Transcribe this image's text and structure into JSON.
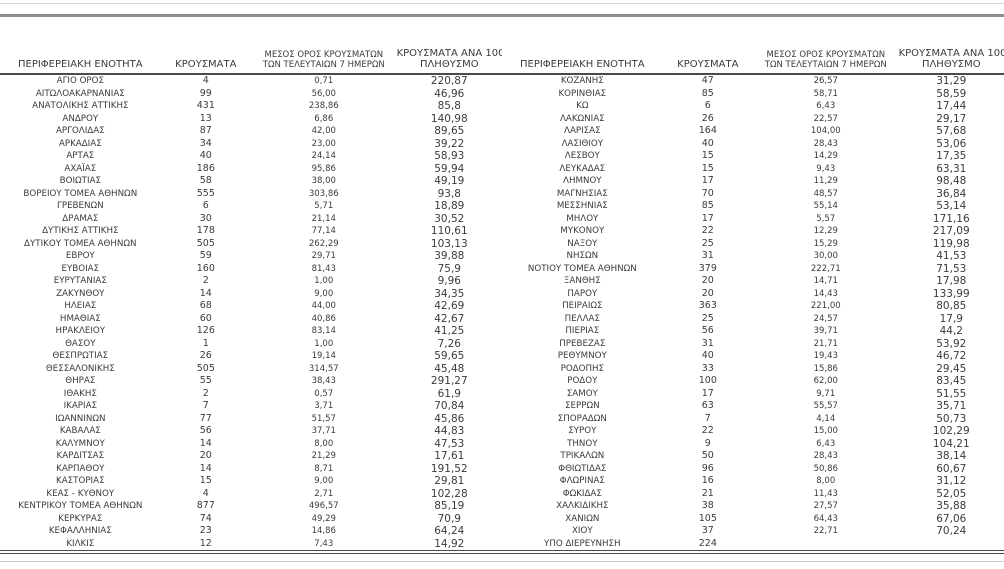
{
  "colors": {
    "text": "#3b3b3b",
    "rule_light": "#d9d9d9",
    "rule_medium": "#8c8c8c",
    "rule_dark": "#4a4a4a"
  },
  "headers": {
    "region": "ΠΕΡΙΦΕΡΕΙΑΚΗ ΕΝΟΤΗΤΑ",
    "cases": "ΚΡΟΥΣΜΑΤΑ",
    "avg7_line1": "ΜΕΣΟΣ ΟΡΟΣ ΚΡΟΥΣΜΑΤΩΝ",
    "avg7_line2": "ΤΩΝ ΤΕΛΕΥΤΑΙΩΝ 7 ΗΜΕΡΩΝ",
    "per100k_line1": "ΚΡΟΥΣΜΑΤΑ ΑΝΑ 100000",
    "per100k_line2": "ΠΛΗΘΥΣΜΟ"
  },
  "left_rows": [
    [
      "ΑΓΙΟ ΟΡΟΣ",
      "4",
      "0,71",
      "220,87"
    ],
    [
      "ΑΙΤΩΛΟΑΚΑΡΝΑΝΙΑΣ",
      "99",
      "56,00",
      "46,96"
    ],
    [
      "ΑΝΑΤΟΛΙΚΗΣ ΑΤΤΙΚΗΣ",
      "431",
      "238,86",
      "85,8"
    ],
    [
      "ΑΝΔΡΟΥ",
      "13",
      "6,86",
      "140,98"
    ],
    [
      "ΑΡΓΟΛΙΔΑΣ",
      "87",
      "42,00",
      "89,65"
    ],
    [
      "ΑΡΚΑΔΙΑΣ",
      "34",
      "23,00",
      "39,22"
    ],
    [
      "ΑΡΤΑΣ",
      "40",
      "24,14",
      "58,93"
    ],
    [
      "ΑΧΑΪΑΣ",
      "186",
      "95,86",
      "59,94"
    ],
    [
      "ΒΟΙΩΤΙΑΣ",
      "58",
      "38,00",
      "49,19"
    ],
    [
      "ΒΟΡΕΙΟΥ ΤΟΜΕΑ ΑΘΗΝΩΝ",
      "555",
      "303,86",
      "93,8"
    ],
    [
      "ΓΡΕΒΕΝΩΝ",
      "6",
      "5,71",
      "18,89"
    ],
    [
      "ΔΡΑΜΑΣ",
      "30",
      "21,14",
      "30,52"
    ],
    [
      "ΔΥΤΙΚΗΣ ΑΤΤΙΚΗΣ",
      "178",
      "77,14",
      "110,61"
    ],
    [
      "ΔΥΤΙΚΟΥ ΤΟΜΕΑ ΑΘΗΝΩΝ",
      "505",
      "262,29",
      "103,13"
    ],
    [
      "ΕΒΡΟΥ",
      "59",
      "29,71",
      "39,88"
    ],
    [
      "ΕΥΒΟΙΑΣ",
      "160",
      "81,43",
      "75,9"
    ],
    [
      "ΕΥΡΥΤΑΝΙΑΣ",
      "2",
      "1,00",
      "9,96"
    ],
    [
      "ΖΑΚΥΝΘΟΥ",
      "14",
      "9,00",
      "34,35"
    ],
    [
      "ΗΛΕΙΑΣ",
      "68",
      "44,00",
      "42,69"
    ],
    [
      "ΗΜΑΘΙΑΣ",
      "60",
      "40,86",
      "42,67"
    ],
    [
      "ΗΡΑΚΛΕΙΟΥ",
      "126",
      "83,14",
      "41,25"
    ],
    [
      "ΘΑΣΟΥ",
      "1",
      "1,00",
      "7,26"
    ],
    [
      "ΘΕΣΠΡΩΤΙΑΣ",
      "26",
      "19,14",
      "59,65"
    ],
    [
      "ΘΕΣΣΑΛΟΝΙΚΗΣ",
      "505",
      "314,57",
      "45,48"
    ],
    [
      "ΘΗΡΑΣ",
      "55",
      "38,43",
      "291,27"
    ],
    [
      "ΙΘΑΚΗΣ",
      "2",
      "0,57",
      "61,9"
    ],
    [
      "ΙΚΑΡΙΑΣ",
      "7",
      "3,71",
      "70,84"
    ],
    [
      "ΙΩΑΝΝΙΝΩΝ",
      "77",
      "51,57",
      "45,86"
    ],
    [
      "ΚΑΒΑΛΑΣ",
      "56",
      "37,71",
      "44,83"
    ],
    [
      "ΚΑΛΥΜΝΟΥ",
      "14",
      "8,00",
      "47,53"
    ],
    [
      "ΚΑΡΔΙΤΣΑΣ",
      "20",
      "21,29",
      "17,61"
    ],
    [
      "ΚΑΡΠΑΘΟΥ",
      "14",
      "8,71",
      "191,52"
    ],
    [
      "ΚΑΣΤΟΡΙΑΣ",
      "15",
      "9,00",
      "29,81"
    ],
    [
      "ΚΕΑΣ - ΚΥΘΝΟΥ",
      "4",
      "2,71",
      "102,28"
    ],
    [
      "ΚΕΝΤΡΙΚΟΥ ΤΟΜΕΑ ΑΘΗΝΩΝ",
      "877",
      "496,57",
      "85,19"
    ],
    [
      "ΚΕΡΚΥΡΑΣ",
      "74",
      "49,29",
      "70,9"
    ],
    [
      "ΚΕΦΑΛΛΗΝΙΑΣ",
      "23",
      "14,86",
      "64,24"
    ],
    [
      "ΚΙΛΚΙΣ",
      "12",
      "7,43",
      "14,92"
    ]
  ],
  "right_rows": [
    [
      "ΚΟΖΑΝΗΣ",
      "47",
      "26,57",
      "31,29"
    ],
    [
      "ΚΟΡΙΝΘΙΑΣ",
      "85",
      "58,71",
      "58,59"
    ],
    [
      "ΚΩ",
      "6",
      "6,43",
      "17,44"
    ],
    [
      "ΛΑΚΩΝΙΑΣ",
      "26",
      "22,57",
      "29,17"
    ],
    [
      "ΛΑΡΙΣΑΣ",
      "164",
      "104,00",
      "57,68"
    ],
    [
      "ΛΑΣΙΘΙΟΥ",
      "40",
      "28,43",
      "53,06"
    ],
    [
      "ΛΕΣΒΟΥ",
      "15",
      "14,29",
      "17,35"
    ],
    [
      "ΛΕΥΚΑΔΑΣ",
      "15",
      "9,43",
      "63,31"
    ],
    [
      "ΛΗΜΝΟΥ",
      "17",
      "11,29",
      "98,48"
    ],
    [
      "ΜΑΓΝΗΣΙΑΣ",
      "70",
      "48,57",
      "36,84"
    ],
    [
      "ΜΕΣΣΗΝΙΑΣ",
      "85",
      "55,14",
      "53,14"
    ],
    [
      "ΜΗΛΟΥ",
      "17",
      "5,57",
      "171,16"
    ],
    [
      "ΜΥΚΟΝΟΥ",
      "22",
      "12,29",
      "217,09"
    ],
    [
      "ΝΑΞΟΥ",
      "25",
      "15,29",
      "119,98"
    ],
    [
      "ΝΗΣΩΝ",
      "31",
      "30,00",
      "41,53"
    ],
    [
      "ΝΟΤΙΟΥ ΤΟΜΕΑ ΑΘΗΝΩΝ",
      "379",
      "222,71",
      "71,53"
    ],
    [
      "ΞΑΝΘΗΣ",
      "20",
      "14,71",
      "17,98"
    ],
    [
      "ΠΑΡΟΥ",
      "20",
      "14,43",
      "133,99"
    ],
    [
      "ΠΕΙΡΑΙΩΣ",
      "363",
      "221,00",
      "80,85"
    ],
    [
      "ΠΕΛΛΑΣ",
      "25",
      "24,57",
      "17,9"
    ],
    [
      "ΠΙΕΡΙΑΣ",
      "56",
      "39,71",
      "44,2"
    ],
    [
      "ΠΡΕΒΕΖΑΣ",
      "31",
      "21,71",
      "53,92"
    ],
    [
      "ΡΕΘΥΜΝΟΥ",
      "40",
      "19,43",
      "46,72"
    ],
    [
      "ΡΟΔΟΠΗΣ",
      "33",
      "15,86",
      "29,45"
    ],
    [
      "ΡΟΔΟΥ",
      "100",
      "62,00",
      "83,45"
    ],
    [
      "ΣΑΜΟΥ",
      "17",
      "9,71",
      "51,55"
    ],
    [
      "ΣΕΡΡΩΝ",
      "63",
      "55,57",
      "35,71"
    ],
    [
      "ΣΠΟΡΑΔΩΝ",
      "7",
      "4,14",
      "50,73"
    ],
    [
      "ΣΥΡΟΥ",
      "22",
      "15,00",
      "102,29"
    ],
    [
      "ΤΗΝΟΥ",
      "9",
      "6,43",
      "104,21"
    ],
    [
      "ΤΡΙΚΑΛΩΝ",
      "50",
      "28,43",
      "38,14"
    ],
    [
      "ΦΘΙΩΤΙΔΑΣ",
      "96",
      "50,86",
      "60,67"
    ],
    [
      "ΦΛΩΡΙΝΑΣ",
      "16",
      "8,00",
      "31,12"
    ],
    [
      "ΦΩΚΙΔΑΣ",
      "21",
      "11,43",
      "52,05"
    ],
    [
      "ΧΑΛΚΙΔΙΚΗΣ",
      "38",
      "27,57",
      "35,88"
    ],
    [
      "ΧΑΝΙΩΝ",
      "105",
      "64,43",
      "67,06"
    ],
    [
      "ΧΙΟΥ",
      "37",
      "22,71",
      "70,24"
    ],
    [
      "ΥΠΟ ΔΙΕΡΕΥΝΗΣΗ",
      "224",
      "",
      ""
    ]
  ]
}
